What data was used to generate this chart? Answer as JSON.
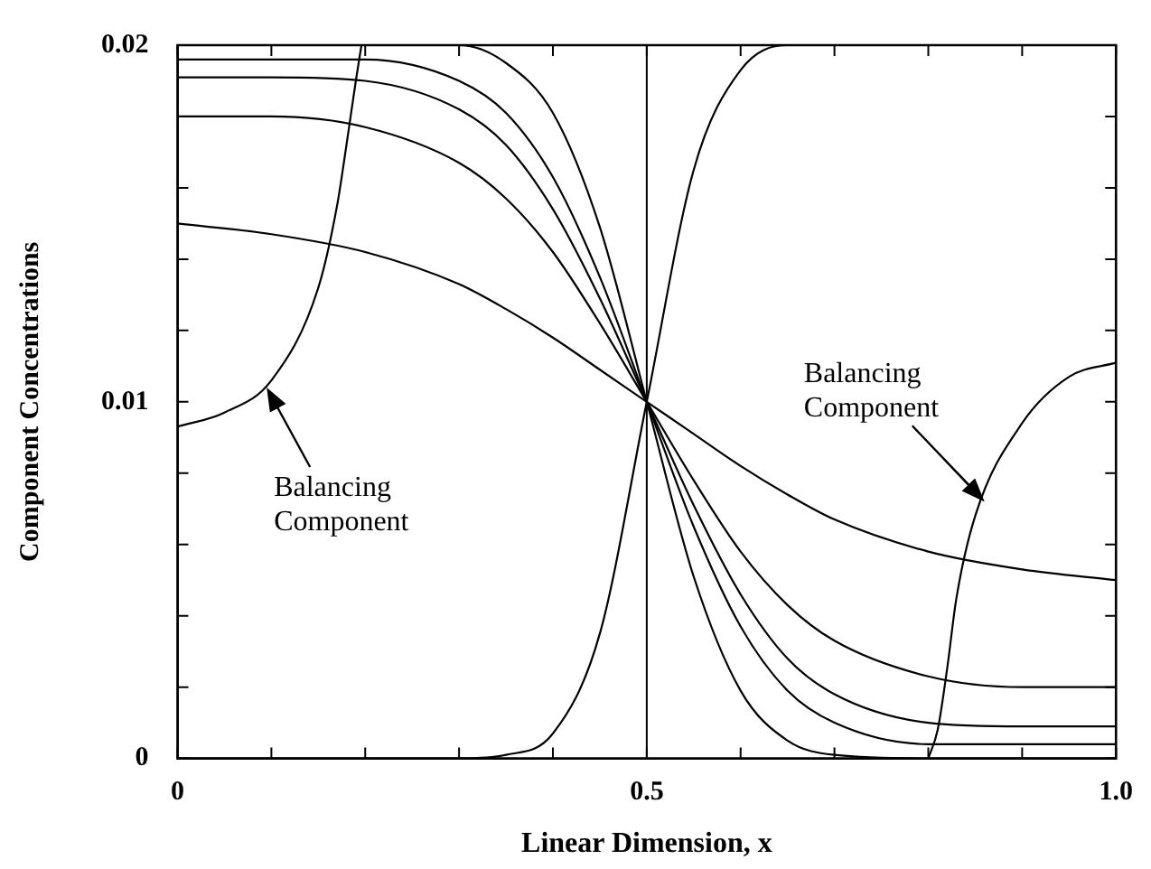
{
  "chart_data": {
    "type": "line",
    "xlabel": "Linear Dimension, x",
    "ylabel": "Component Concentrations",
    "x": [
      0,
      0.1,
      0.2,
      0.3,
      0.35,
      0.4,
      0.45,
      0.5,
      0.55,
      0.6,
      0.65,
      0.7,
      0.8,
      0.9,
      1.0
    ],
    "series": [
      {
        "color": "#000000",
        "values": [
          0.015,
          0.0147,
          0.0142,
          0.0133,
          0.0126,
          0.0118,
          0.0109,
          0.01,
          0.0091,
          0.0082,
          0.0074,
          0.0067,
          0.0058,
          0.0053,
          0.005
        ]
      },
      {
        "color": "#000000",
        "values": [
          0.018,
          0.018,
          0.0177,
          0.0167,
          0.0157,
          0.0142,
          0.0122,
          0.01,
          0.0078,
          0.0058,
          0.0043,
          0.0033,
          0.0023,
          0.002,
          0.002
        ]
      },
      {
        "color": "#000000",
        "values": [
          0.0191,
          0.0191,
          0.019,
          0.0182,
          0.0172,
          0.0154,
          0.0129,
          0.01,
          0.0071,
          0.0046,
          0.0028,
          0.0018,
          0.001,
          0.0009,
          0.0009
        ]
      },
      {
        "color": "#000000",
        "values": [
          0.0196,
          0.0196,
          0.0196,
          0.019,
          0.0181,
          0.0163,
          0.0135,
          0.01,
          0.0065,
          0.0037,
          0.0019,
          0.001,
          0.0004,
          0.0004,
          0.0004
        ]
      },
      {
        "color": "#000000",
        "values": [
          0.02,
          0.02,
          0.02,
          0.02,
          0.0195,
          0.0181,
          0.0149,
          0.01,
          0.0051,
          0.0019,
          0.0005,
          0.0001,
          0,
          0,
          0
        ]
      },
      {
        "color": "#000000",
        "values": [
          0,
          0,
          0,
          0,
          0.0001,
          0.0007,
          0.0035,
          0.01,
          0.0165,
          0.0193,
          0.02,
          0.02,
          0.02,
          0.02,
          0.02
        ]
      },
      {
        "color": "#000000",
        "x": [
          0,
          0.05,
          0.1,
          0.15,
          0.17,
          0.18,
          0.19,
          0.196
        ],
        "values": [
          0.0093,
          0.0097,
          0.0106,
          0.0132,
          0.0155,
          0.0172,
          0.019,
          0.02
        ]
      },
      {
        "color": "#000000",
        "x": [
          0.8,
          0.81,
          0.82,
          0.83,
          0.85,
          0.9,
          0.95,
          1.0
        ],
        "values": [
          0,
          0.0008,
          0.0025,
          0.0045,
          0.0068,
          0.0094,
          0.0107,
          0.0111
        ]
      }
    ],
    "xlim": [
      0,
      1
    ],
    "ylim": [
      0,
      0.02
    ],
    "xticks": [
      0,
      {
        "value": 0.1,
        "label": null
      },
      {
        "value": 0.2,
        "label": null
      },
      {
        "value": 0.3,
        "label": null
      },
      {
        "value": 0.4,
        "label": null
      },
      0.5,
      {
        "value": 0.6,
        "label": null
      },
      {
        "value": 0.7,
        "label": null
      },
      {
        "value": 0.8,
        "label": null
      },
      {
        "value": 0.9,
        "label": null
      },
      {
        "value": 1,
        "label": "1.0"
      }
    ],
    "yticks": [
      0,
      {
        "value": 0.002,
        "label": null
      },
      {
        "value": 0.004,
        "label": null
      },
      {
        "value": 0.006,
        "label": null
      },
      {
        "value": 0.008,
        "label": null
      },
      0.01,
      {
        "value": 0.012,
        "label": null
      },
      {
        "value": 0.014,
        "label": null
      },
      {
        "value": 0.016,
        "label": null
      },
      {
        "value": 0.018,
        "label": null
      },
      0.02
    ],
    "ref_lines": [
      {
        "axis": "x",
        "value": 0.5,
        "color": "#000000"
      }
    ],
    "annotations": [
      {
        "text": "Balancing Component",
        "x": 0.095,
        "y": 0.0104
      },
      "Balancing Component"
    ],
    "grid": false,
    "legend": false,
    "marker": "none",
    "line_style": "solid"
  }
}
